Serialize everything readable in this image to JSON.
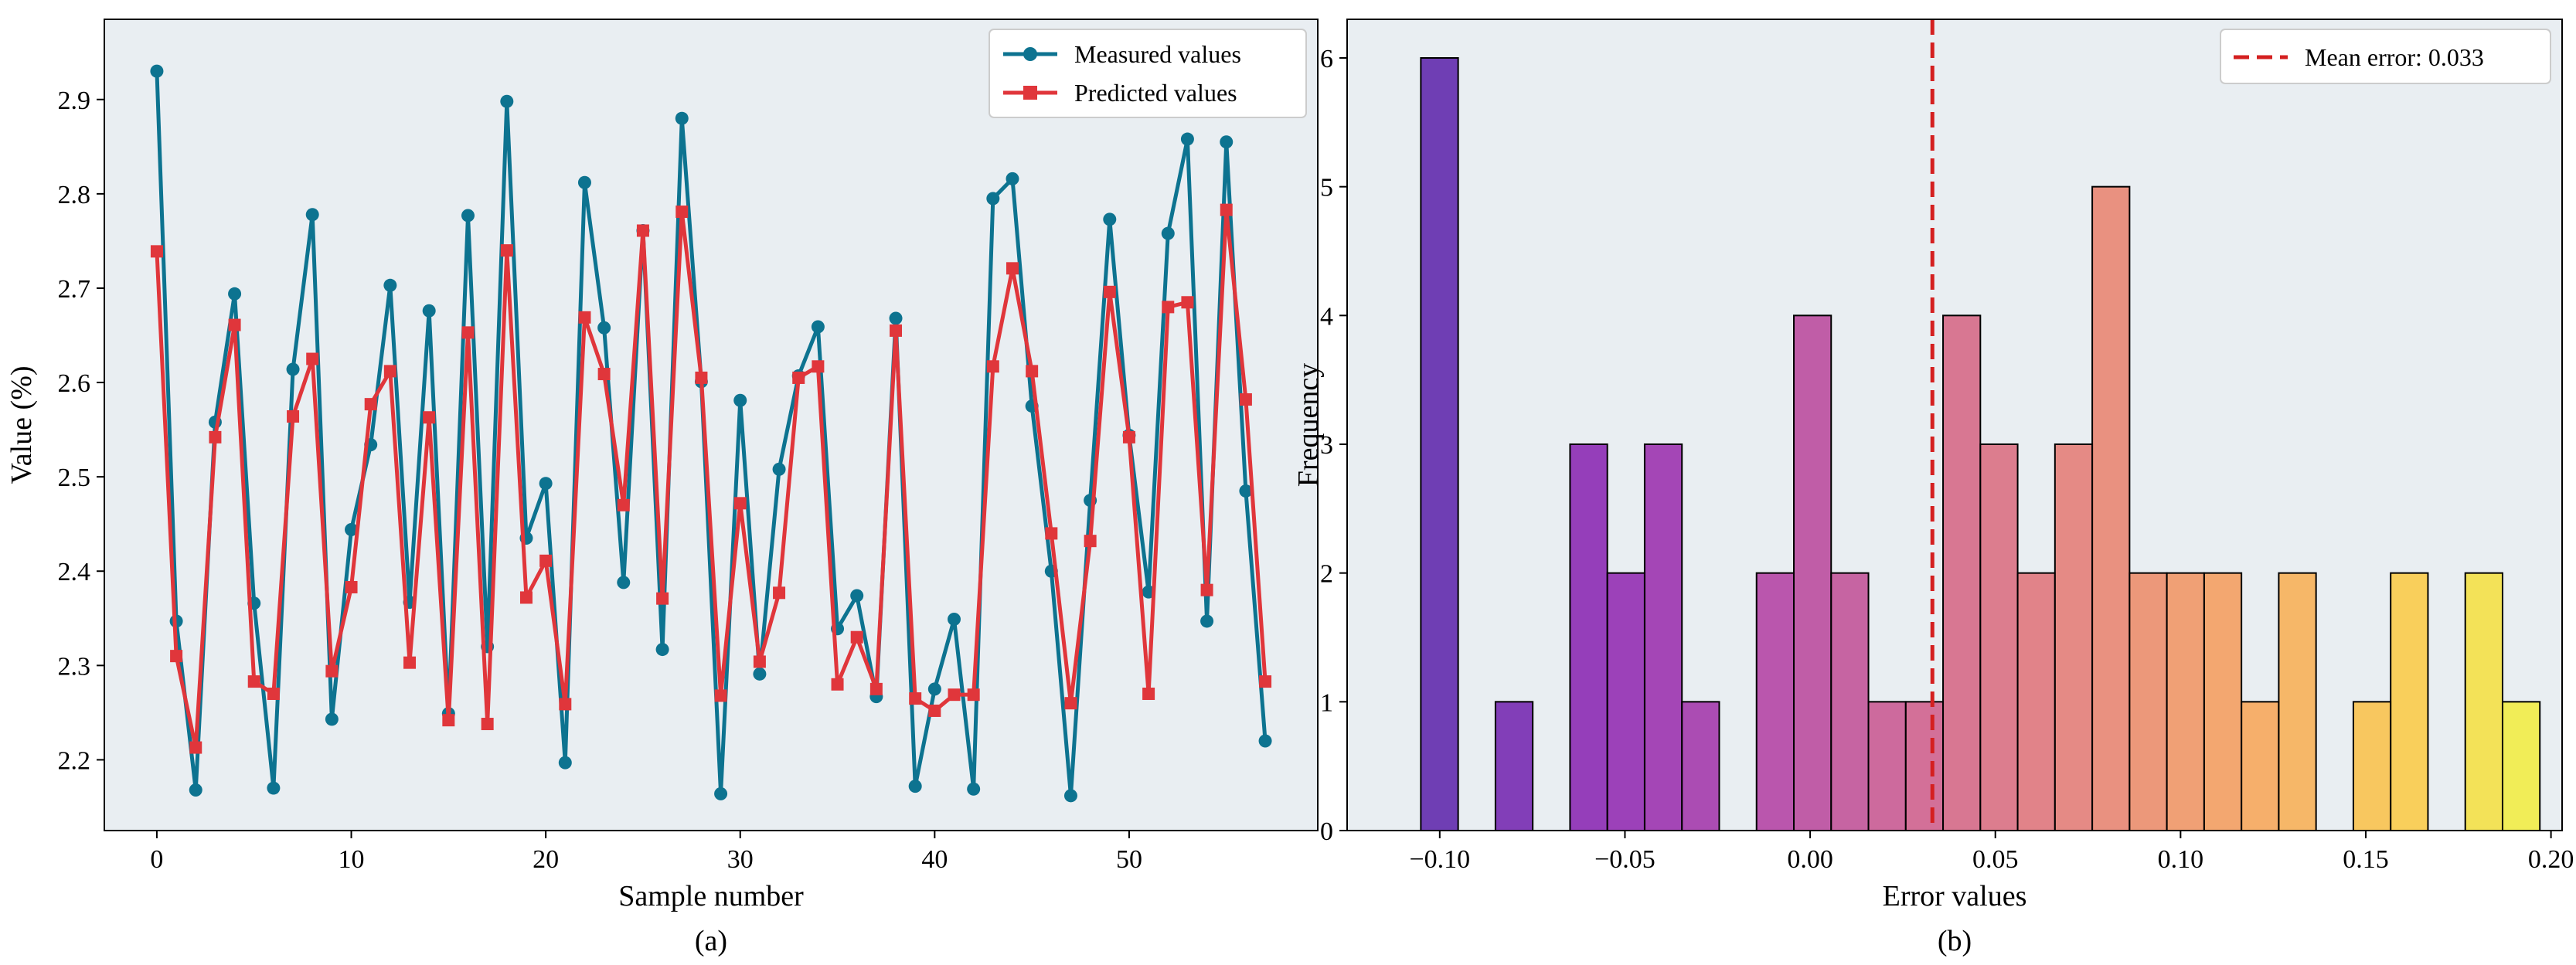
{
  "colors": {
    "panel_bg": "#e9eef2",
    "measured": "#0d7390",
    "predicted": "#e0363b",
    "mean_line": "#d42020",
    "legend_bg": "#ffffff"
  },
  "chart_data": [
    {
      "type": "line",
      "caption": "(a)",
      "xlabel": "Sample number",
      "ylabel": "Value (%)",
      "xlim": [
        -2.7,
        59.7
      ],
      "ylim": [
        2.125,
        2.985
      ],
      "xticks": [
        0,
        10,
        20,
        30,
        40,
        50
      ],
      "yticks": [
        2.2,
        2.3,
        2.4,
        2.5,
        2.6,
        2.7,
        2.8,
        2.9
      ],
      "legend_position": "top-right",
      "series": [
        {
          "name": "Measured values",
          "marker": "circle",
          "values": [
            2.93,
            2.347,
            2.168,
            2.558,
            2.694,
            2.366,
            2.17,
            2.614,
            2.778,
            2.243,
            2.444,
            2.534,
            2.703,
            2.367,
            2.676,
            2.249,
            2.777,
            2.32,
            2.898,
            2.435,
            2.493,
            2.197,
            2.812,
            2.658,
            2.388,
            2.761,
            2.317,
            2.88,
            2.601,
            2.164,
            2.581,
            2.291,
            2.508,
            2.607,
            2.659,
            2.339,
            2.374,
            2.267,
            2.668,
            2.172,
            2.275,
            2.349,
            2.169,
            2.795,
            2.816,
            2.575,
            2.4,
            2.162,
            2.475,
            2.773,
            2.544,
            2.378,
            2.758,
            2.858,
            2.347,
            2.855,
            2.485,
            2.22
          ]
        },
        {
          "name": "Predicted values",
          "marker": "square",
          "values": [
            2.739,
            2.31,
            2.213,
            2.542,
            2.661,
            2.283,
            2.27,
            2.564,
            2.625,
            2.294,
            2.383,
            2.577,
            2.612,
            2.303,
            2.563,
            2.242,
            2.653,
            2.238,
            2.74,
            2.372,
            2.411,
            2.259,
            2.669,
            2.609,
            2.47,
            2.761,
            2.371,
            2.781,
            2.605,
            2.268,
            2.472,
            2.304,
            2.377,
            2.605,
            2.617,
            2.28,
            2.33,
            2.275,
            2.655,
            2.265,
            2.252,
            2.269,
            2.269,
            2.617,
            2.721,
            2.612,
            2.44,
            2.26,
            2.432,
            2.696,
            2.542,
            2.27,
            2.68,
            2.685,
            2.38,
            2.783,
            2.582,
            2.283
          ]
        }
      ]
    },
    {
      "type": "histogram",
      "caption": "(b)",
      "xlabel": "Error values",
      "ylabel": "Frequency",
      "xlim": [
        -0.125,
        0.203
      ],
      "ylim": [
        0,
        6.3
      ],
      "xticks": [
        -0.1,
        -0.05,
        0.0,
        0.05,
        0.1,
        0.15,
        0.2
      ],
      "xtick_labels": [
        "−0.10",
        "−0.05",
        "0.00",
        "0.05",
        "0.10",
        "0.15",
        "0.20"
      ],
      "yticks": [
        0,
        1,
        2,
        3,
        4,
        5,
        6
      ],
      "bin_start": -0.1051,
      "bin_width": 0.01007,
      "counts": [
        6,
        0,
        1,
        0,
        3,
        2,
        3,
        1,
        0,
        2,
        4,
        2,
        1,
        1,
        4,
        3,
        2,
        3,
        5,
        2,
        2,
        2,
        1,
        2,
        0,
        1,
        2,
        0,
        2,
        1
      ],
      "colormap": "plasma",
      "mean_error": 0.033,
      "mean_label": "Mean error: 0.033",
      "legend_position": "top-right"
    }
  ]
}
